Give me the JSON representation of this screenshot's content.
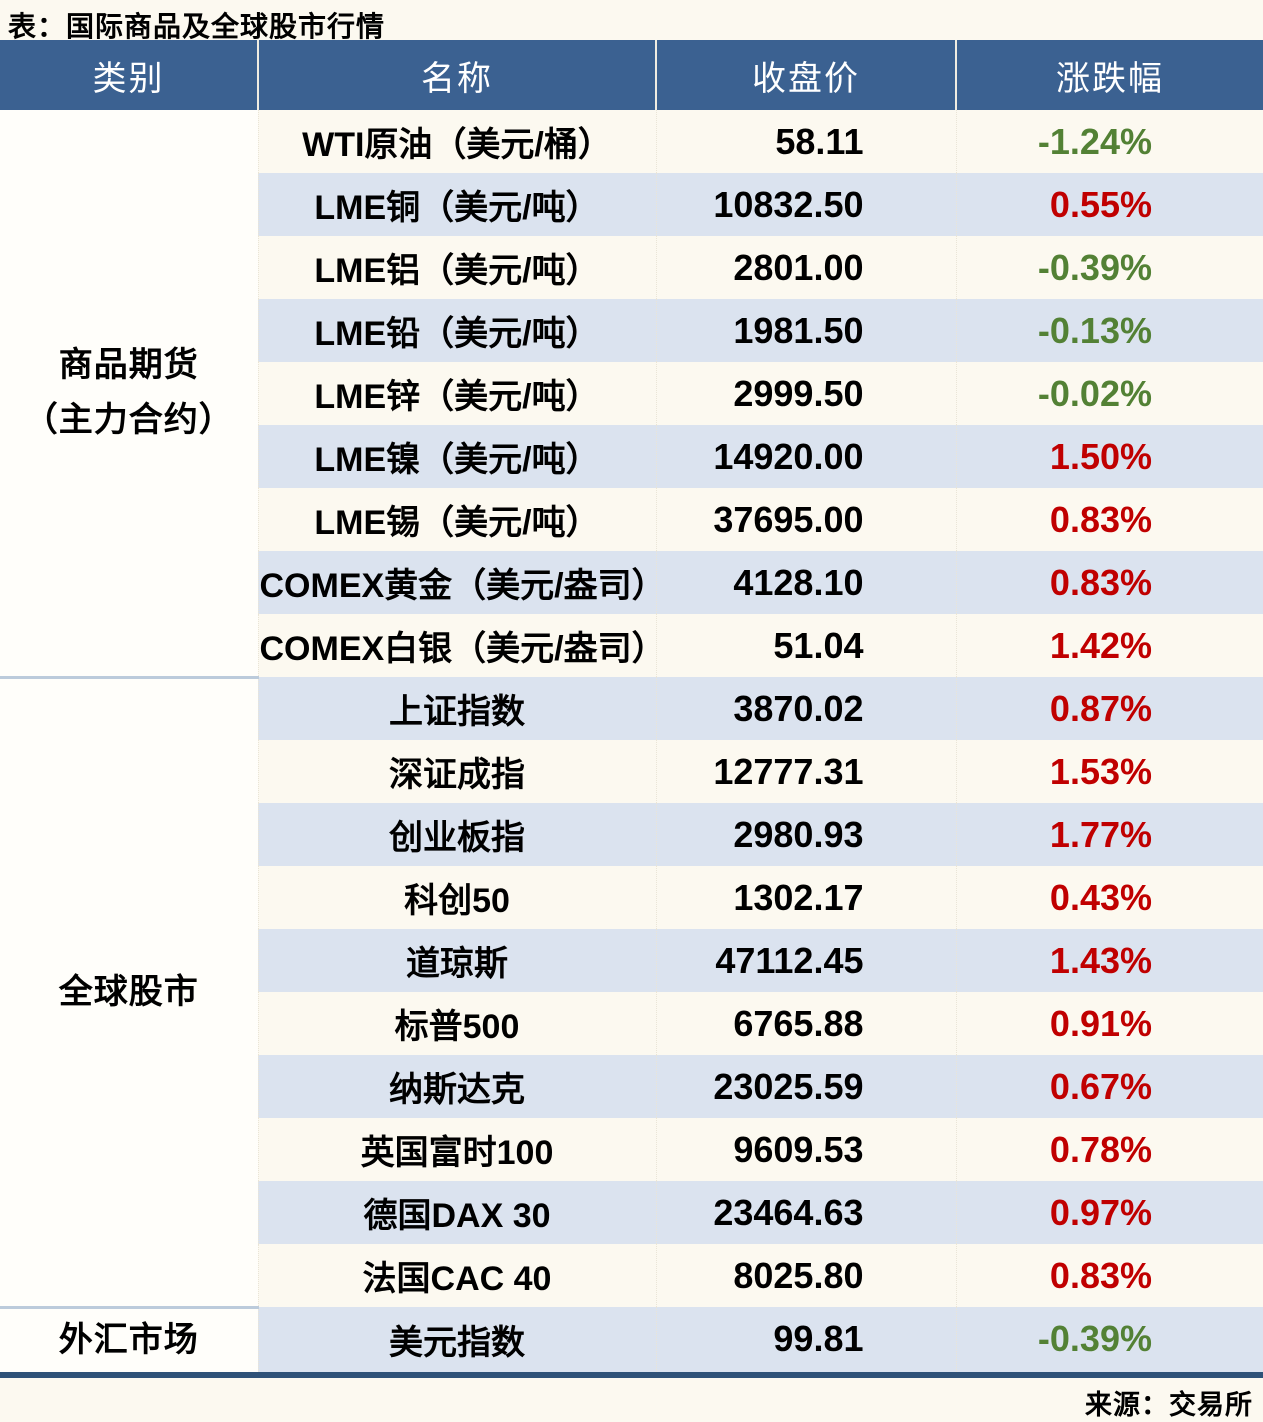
{
  "chart_data": {
    "type": "table",
    "title": "表：国际商品及全球股市行情",
    "source": "来源：交易所",
    "columns": [
      "类别",
      "名称",
      "收盘价",
      "涨跌幅"
    ],
    "groups": [
      {
        "category_lines": [
          "商品期货",
          "（主力合约）"
        ],
        "rows": [
          {
            "name": "WTI原油（美元/桶）",
            "close": "58.11",
            "change": "-1.24%"
          },
          {
            "name": "LME铜（美元/吨）",
            "close": "10832.50",
            "change": "0.55%"
          },
          {
            "name": "LME铝（美元/吨）",
            "close": "2801.00",
            "change": "-0.39%"
          },
          {
            "name": "LME铅（美元/吨）",
            "close": "1981.50",
            "change": "-0.13%"
          },
          {
            "name": "LME锌（美元/吨）",
            "close": "2999.50",
            "change": "-0.02%"
          },
          {
            "name": "LME镍（美元/吨）",
            "close": "14920.00",
            "change": "1.50%"
          },
          {
            "name": "LME锡（美元/吨）",
            "close": "37695.00",
            "change": "0.83%"
          },
          {
            "name": "COMEX黄金（美元/盎司）",
            "close": "4128.10",
            "change": "0.83%"
          },
          {
            "name": "COMEX白银（美元/盎司）",
            "close": "51.04",
            "change": "1.42%"
          }
        ]
      },
      {
        "category_lines": [
          "全球股市"
        ],
        "rows": [
          {
            "name": "上证指数",
            "close": "3870.02",
            "change": "0.87%"
          },
          {
            "name": "深证成指",
            "close": "12777.31",
            "change": "1.53%"
          },
          {
            "name": "创业板指",
            "close": "2980.93",
            "change": "1.77%"
          },
          {
            "name": "科创50",
            "close": "1302.17",
            "change": "0.43%"
          },
          {
            "name": "道琼斯",
            "close": "47112.45",
            "change": "1.43%"
          },
          {
            "name": "标普500",
            "close": "6765.88",
            "change": "0.91%"
          },
          {
            "name": "纳斯达克",
            "close": "23025.59",
            "change": "0.67%"
          },
          {
            "name": "英国富时100",
            "close": "9609.53",
            "change": "0.78%"
          },
          {
            "name": "德国DAX 30",
            "close": "23464.63",
            "change": "0.97%"
          },
          {
            "name": "法国CAC 40",
            "close": "8025.80",
            "change": "0.83%"
          }
        ]
      },
      {
        "category_lines": [
          "外汇市场"
        ],
        "rows": [
          {
            "name": "美元指数",
            "close": "99.81",
            "change": "-0.39%"
          }
        ]
      }
    ],
    "legend": "涨跌幅颜色：上涨为红色，下跌为绿色"
  },
  "colors": {
    "page_bg": "#fcf9f0",
    "header_bg": "#3b6191",
    "stripe": "#dbe3ef",
    "up_red": "#c00000",
    "down_green": "#538135",
    "bottom_border": "#2f5278"
  }
}
